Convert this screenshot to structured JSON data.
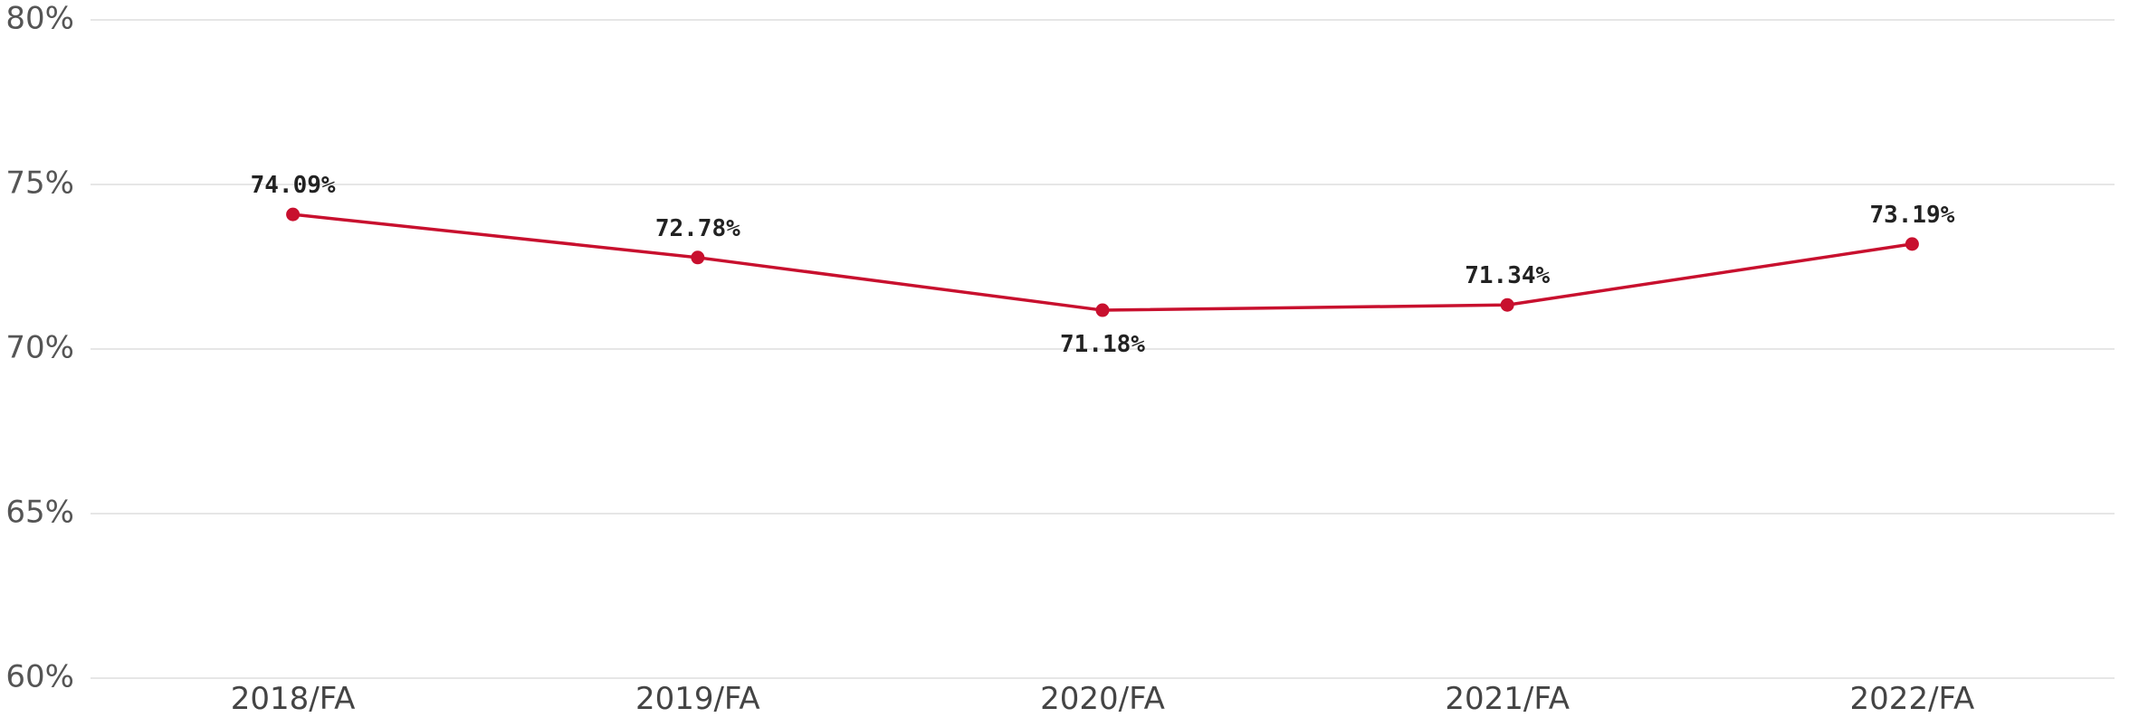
{
  "chart_data": {
    "type": "line",
    "title": "",
    "xlabel": "",
    "ylabel": "",
    "categories": [
      "2018/FA",
      "2019/FA",
      "2020/FA",
      "2021/FA",
      "2022/FA"
    ],
    "series": [
      {
        "values": [
          74.09,
          72.78,
          71.18,
          71.34,
          73.19
        ],
        "labels": [
          "74.09%",
          "72.78%",
          "71.18%",
          "71.34%",
          "73.19%"
        ],
        "color": "#c8102e"
      }
    ],
    "ylim": [
      60,
      80
    ],
    "y_ticks": [
      {
        "value": 80,
        "label": "80%"
      },
      {
        "value": 75,
        "label": "75%"
      },
      {
        "value": 70,
        "label": "70%"
      },
      {
        "value": 65,
        "label": "65%"
      },
      {
        "value": 60,
        "label": "60%"
      }
    ],
    "grid": true,
    "legend": "none"
  }
}
